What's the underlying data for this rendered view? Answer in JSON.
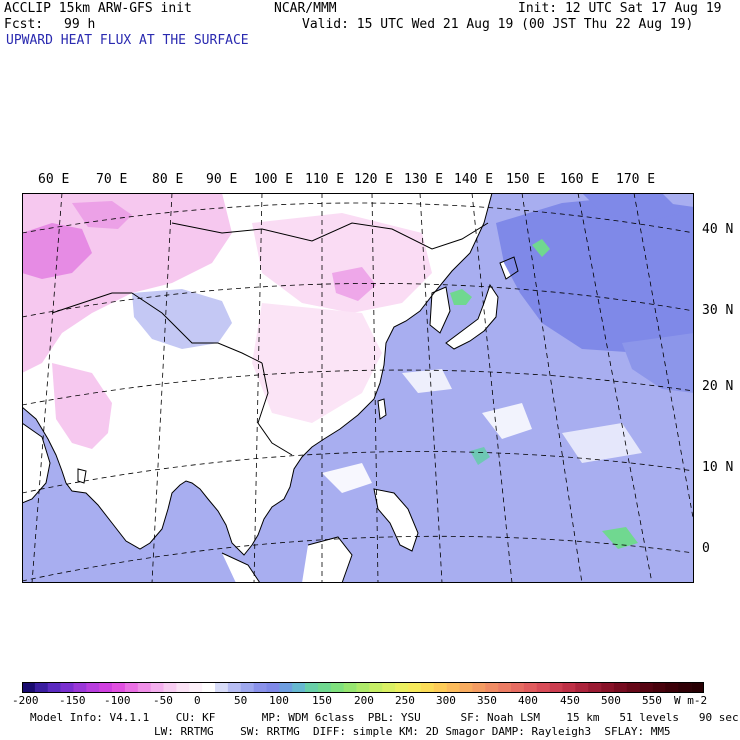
{
  "header": {
    "model": "ACCLIP 15km ARW-GFS init",
    "center": "NCAR/MMM",
    "init": "Init: 12 UTC Sat 17 Aug 19",
    "fcst_label": "Fcst:",
    "fcst_value": "99 h",
    "valid": "Valid: 15 UTC Wed 21 Aug 19 (00 JST Thu 22 Aug 19)",
    "field": "UPWARD HEAT FLUX AT THE SURFACE"
  },
  "map": {
    "lon_labels": [
      "60 E",
      "70 E",
      "80 E",
      "90 E",
      "100 E",
      "110 E",
      "120 E",
      "130 E",
      "140 E",
      "150 E",
      "160 E",
      "170 E"
    ],
    "lat_labels": [
      "40 N",
      "30 N",
      "20 N",
      "10 N",
      "0"
    ],
    "colors": {
      "ocean": "#a8aef0",
      "land": "#ffffff",
      "land_pink": "#f6c8ef",
      "magenta": "#e070e0",
      "blue_heavy": "#7f89e8",
      "green": "#70d890",
      "border": "#000000",
      "grid": "#000000"
    }
  },
  "colorbar": {
    "labels": [
      "-200",
      "-150",
      "-100",
      "-50",
      "0",
      "50",
      "100",
      "150",
      "200",
      "250",
      "300",
      "350",
      "400",
      "450",
      "500",
      "550"
    ],
    "units": "W m-2",
    "colors": [
      "#1a0c70",
      "#3a1ea0",
      "#5a2ac0",
      "#7a30d0",
      "#9a38d8",
      "#b83ede",
      "#d040e0",
      "#e050e0",
      "#ea70e4",
      "#f090e8",
      "#f4b0ee",
      "#f8cdf2",
      "#fbe3f6",
      "#fdf1fa",
      "#ffffff",
      "#d8dcf8",
      "#b7bdf3",
      "#9ea8ee",
      "#8a92ea",
      "#7f89e8",
      "#6e9ee0",
      "#66b8d0",
      "#68cfa8",
      "#70d890",
      "#7fe07e",
      "#96e570",
      "#aeea6a",
      "#c6ee66",
      "#daf064",
      "#ecf060",
      "#f6ea5c",
      "#fbdc58",
      "#fdcc58",
      "#fcbc5c",
      "#f8ac60",
      "#f49c62",
      "#f08c64",
      "#ec7c64",
      "#e66c62",
      "#e05c5e",
      "#d84c58",
      "#cc3e50",
      "#be3046",
      "#ac243c",
      "#9a1a32",
      "#881228",
      "#760c20",
      "#660818",
      "#560412",
      "#48020c",
      "#3c0008",
      "#300006",
      "#280004"
    ]
  },
  "footer": {
    "line1": "Model Info: V4.1.1    CU: KF       MP: WDM 6class  PBL: YSU      SF: Noah LSM    15 km   51 levels   90 sec",
    "line2": "LW: RRTMG    SW: RRTMG  DIFF: simple KM: 2D Smagor DAMP: Rayleigh3  SFLAY: MM5"
  }
}
